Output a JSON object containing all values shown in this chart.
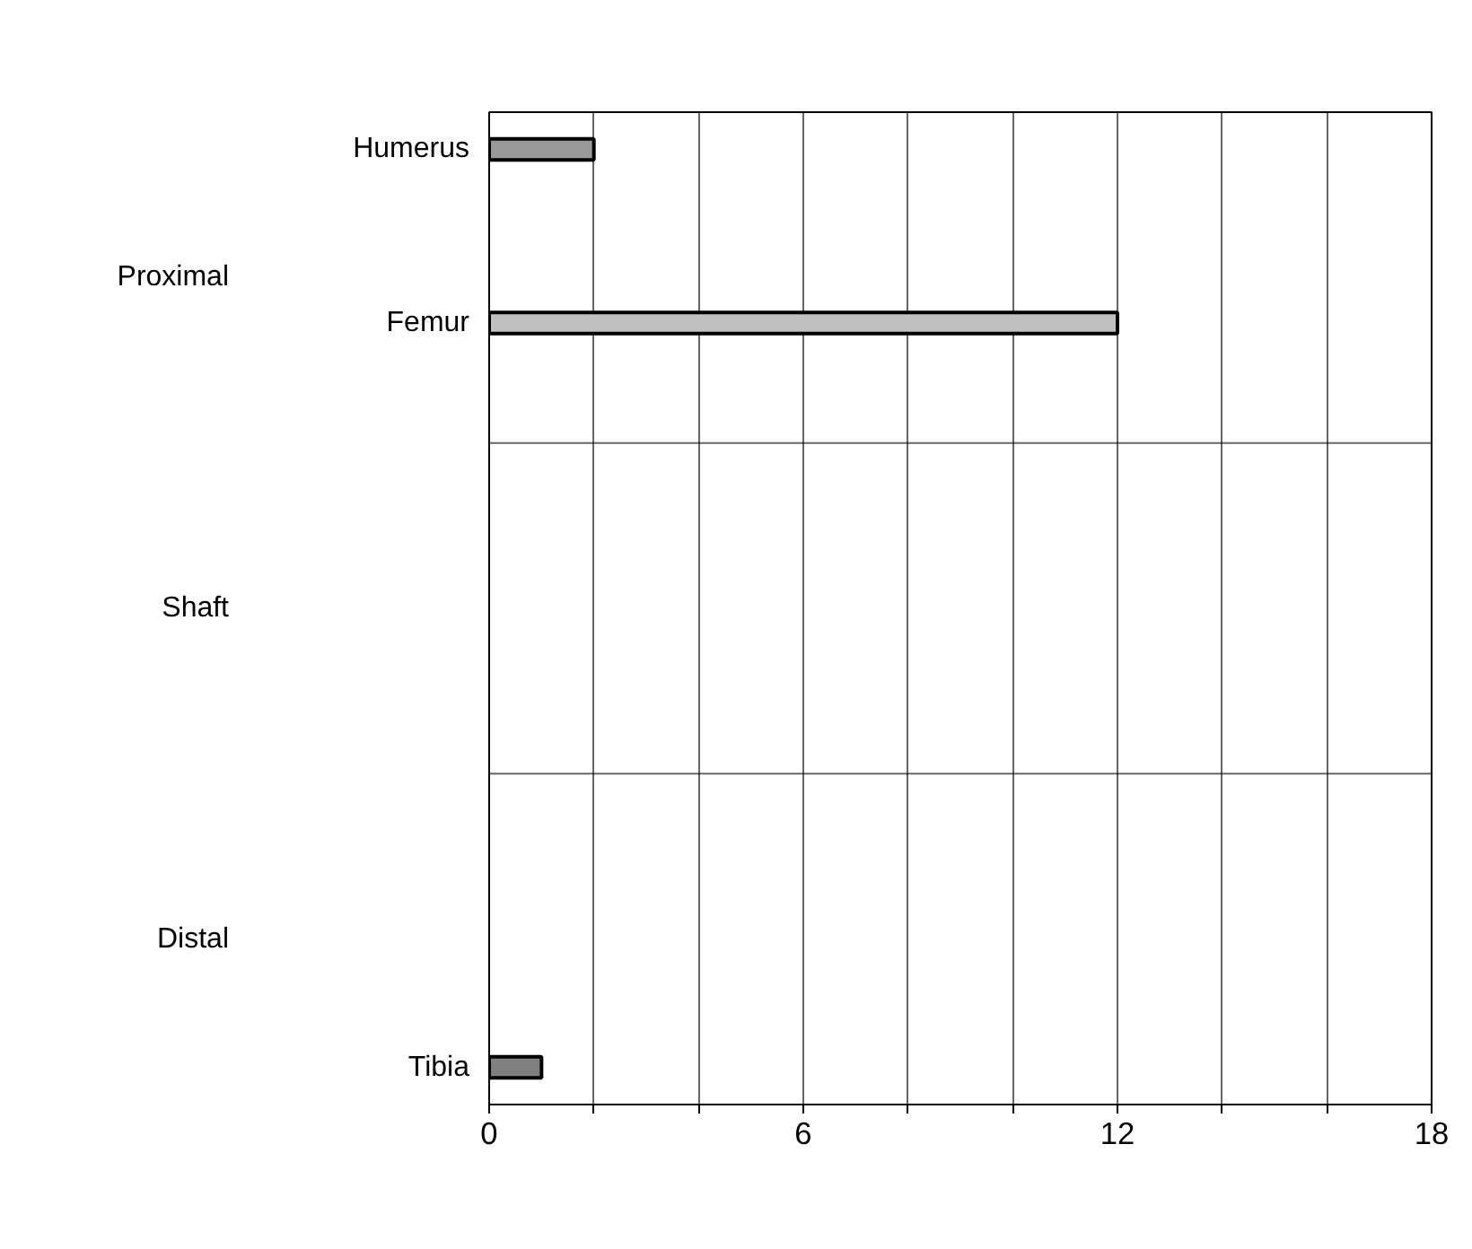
{
  "chart_data": {
    "type": "bar",
    "orientation": "horizontal",
    "categories": [
      null,
      "Humerus",
      null,
      null,
      null,
      null,
      null,
      null,
      "Femur",
      null,
      null,
      null,
      null,
      null,
      null,
      null,
      null,
      null,
      null,
      null,
      null,
      null,
      null,
      null,
      null,
      null,
      null,
      null,
      null,
      null,
      null,
      null,
      null,
      null,
      null,
      null,
      null,
      null,
      "Tibia",
      null
    ],
    "values": [
      null,
      2,
      null,
      null,
      null,
      null,
      null,
      null,
      12,
      null,
      null,
      null,
      null,
      null,
      null,
      null,
      null,
      null,
      null,
      null,
      null,
      null,
      null,
      null,
      null,
      null,
      null,
      null,
      null,
      null,
      null,
      null,
      null,
      null,
      null,
      null,
      null,
      null,
      1,
      null
    ],
    "colors": [
      "#999999",
      "#999999",
      "#999999",
      "#999999",
      "#999999",
      "#999999",
      "#999999",
      "#999999",
      "#c0c0c0",
      "#999999",
      "#999999",
      "#999999",
      "#999999",
      "#999999",
      "#999999",
      "#999999",
      "#999999",
      "#999999",
      "#999999",
      "#999999",
      "#999999",
      "#999999",
      "#999999",
      "#999999",
      "#999999",
      "#999999",
      "#999999",
      "#999999",
      "#999999",
      "#999999",
      "#999999",
      "#999999",
      "#999999",
      "#999999",
      "#999999",
      "#999999",
      "#999999",
      "#999999",
      "#808080",
      "#999999"
    ],
    "xlim": [
      0,
      18
    ],
    "xticks": [
      0,
      {
        "value": 2,
        "label": null
      },
      {
        "value": 4,
        "label": null
      },
      6,
      {
        "value": 8,
        "label": null
      },
      {
        "value": 10,
        "label": null
      },
      12,
      {
        "value": 14,
        "label": null
      },
      {
        "value": 16,
        "label": null
      },
      18
    ],
    "grid": true,
    "annotations": [
      "Proximal",
      "Shaft",
      "Distal"
    ]
  }
}
